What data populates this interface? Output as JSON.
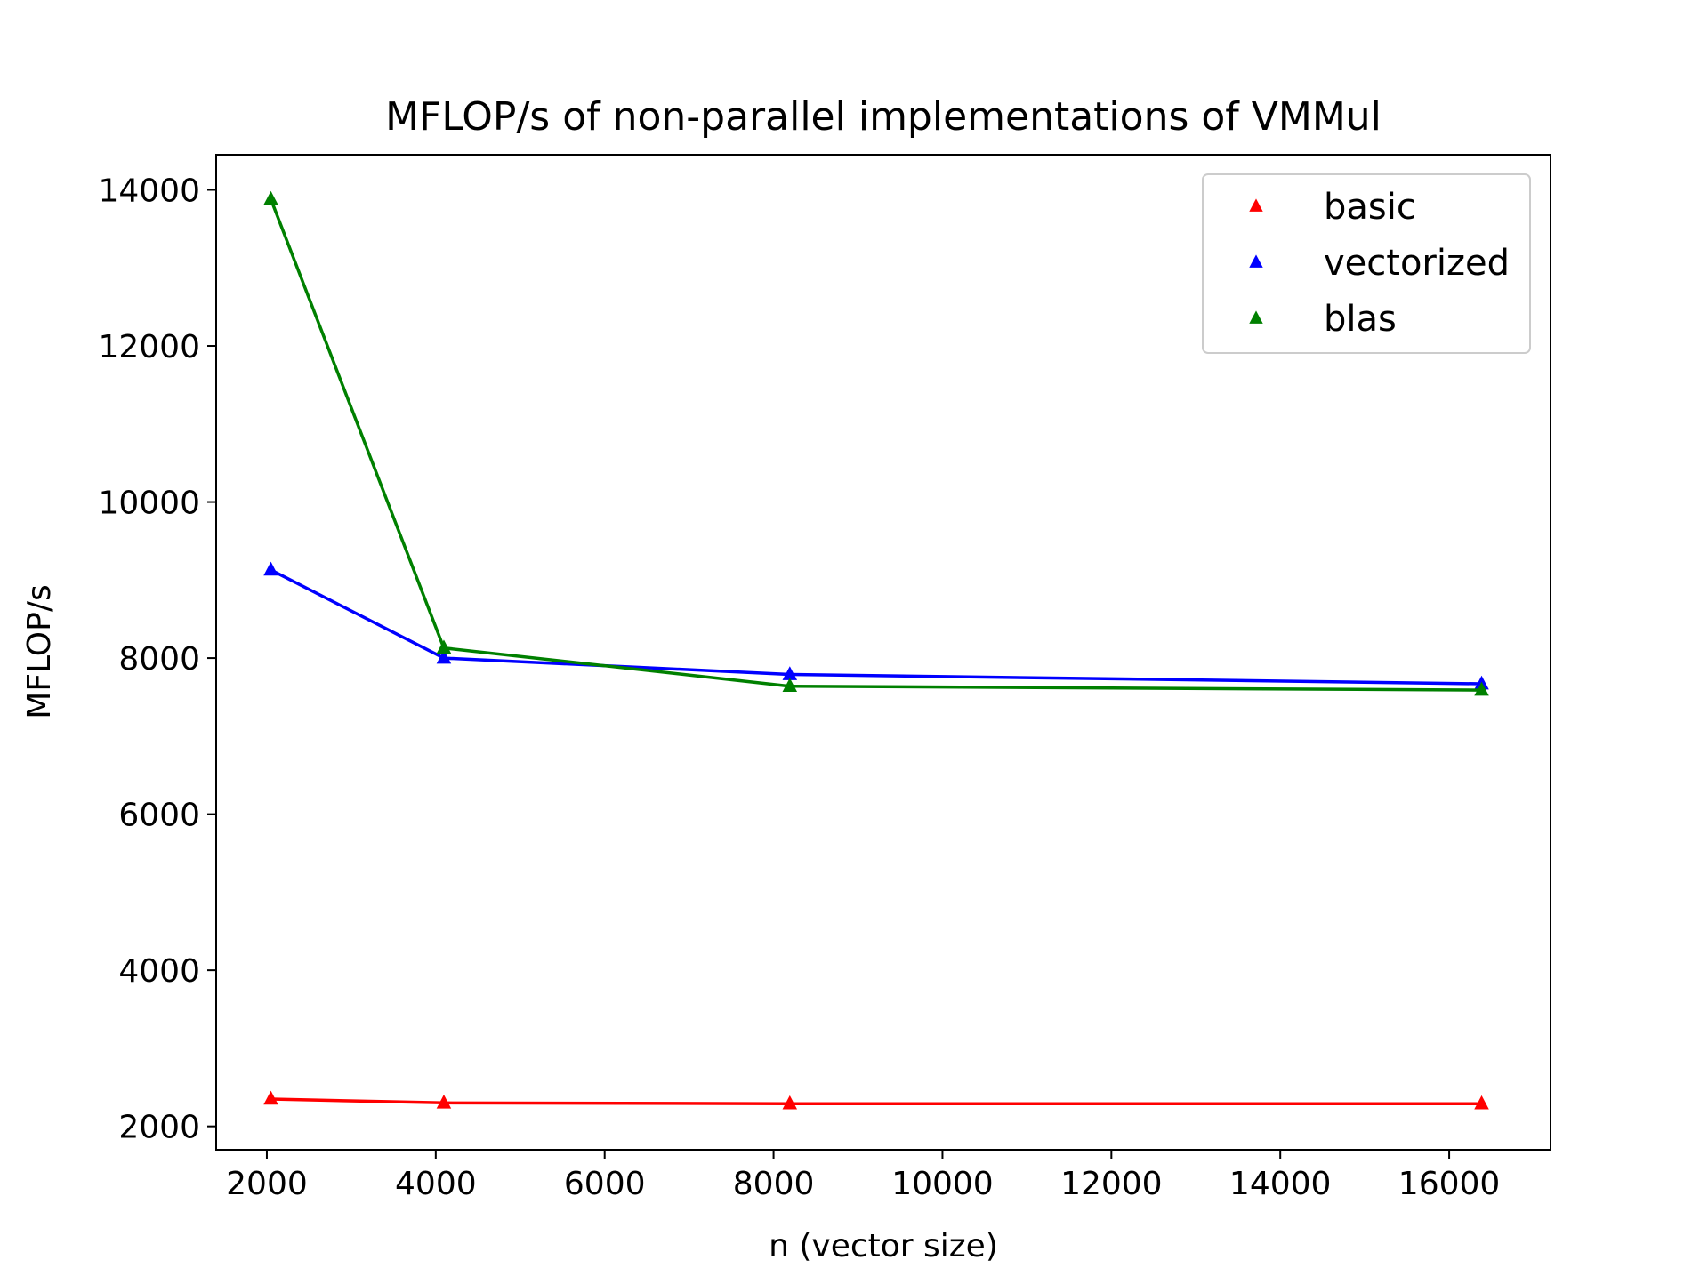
{
  "chart_data": {
    "type": "line",
    "title": "MFLOP/s of non-parallel implementations of VMMul",
    "xlabel": "n (vector size)",
    "ylabel": "MFLOP/s",
    "xlim": [
      1400,
      17200
    ],
    "ylim": [
      1700,
      14450
    ],
    "x_ticks": [
      2000,
      4000,
      6000,
      8000,
      10000,
      12000,
      14000,
      16000
    ],
    "y_ticks": [
      2000,
      4000,
      6000,
      8000,
      10000,
      12000,
      14000
    ],
    "x": [
      2048,
      4096,
      8192,
      16384
    ],
    "series": [
      {
        "name": "basic",
        "color": "#ff0000",
        "marker": "triangle-up",
        "values": [
          2350,
          2300,
          2290,
          2290
        ]
      },
      {
        "name": "vectorized",
        "color": "#0000ff",
        "marker": "triangle-up",
        "values": [
          9130,
          8000,
          7790,
          7670
        ]
      },
      {
        "name": "blas",
        "color": "#008000",
        "marker": "triangle-up",
        "values": [
          13880,
          8130,
          7640,
          7590
        ]
      }
    ],
    "legend": "top-right",
    "grid": false
  }
}
